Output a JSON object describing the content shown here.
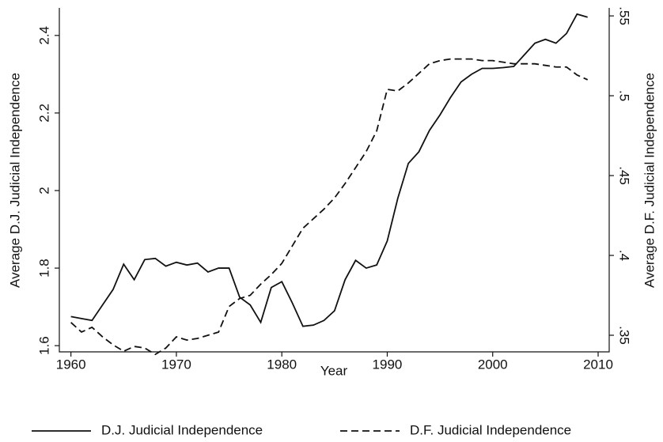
{
  "chart_data": {
    "type": "line",
    "xlabel": "Year",
    "ylabel": "Average D.J. Judicial Independence",
    "y2label": "Average D.F. Judicial Independence",
    "x": [
      1960,
      1961,
      1962,
      1963,
      1964,
      1965,
      1966,
      1967,
      1968,
      1969,
      1970,
      1971,
      1972,
      1973,
      1974,
      1975,
      1976,
      1977,
      1978,
      1979,
      1980,
      1981,
      1982,
      1983,
      1984,
      1985,
      1986,
      1987,
      1988,
      1989,
      1990,
      1991,
      1992,
      1993,
      1994,
      1995,
      1996,
      1997,
      1998,
      1999,
      2000,
      2001,
      2002,
      2003,
      2004,
      2005,
      2006,
      2007,
      2008,
      2009
    ],
    "series": [
      {
        "name": "D.J. Judicial Independence",
        "color": "#111111",
        "dash": "solid",
        "values": [
          1.675,
          1.67,
          1.665,
          1.705,
          1.745,
          1.81,
          1.77,
          1.822,
          1.825,
          1.805,
          1.815,
          1.808,
          1.813,
          1.79,
          1.8,
          1.8,
          1.725,
          1.705,
          1.66,
          1.75,
          1.765,
          1.71,
          1.65,
          1.653,
          1.665,
          1.69,
          1.77,
          1.82,
          1.8,
          1.808,
          1.87,
          1.98,
          2.07,
          2.1,
          2.155,
          2.195,
          2.24,
          2.28,
          2.3,
          2.315,
          2.315,
          2.317,
          2.32,
          2.35,
          2.38,
          2.39,
          2.38,
          2.405,
          2.455,
          2.447
        ]
      },
      {
        "name": "D.F. Judicial Independence",
        "color": "#111111",
        "dash": "dashed",
        "axis": "y2",
        "values": [
          0.358,
          0.352,
          0.355,
          0.349,
          0.344,
          0.34,
          0.343,
          0.342,
          0.338,
          0.342,
          0.349,
          0.347,
          0.348,
          0.35,
          0.352,
          0.368,
          0.373,
          0.375,
          0.382,
          0.388,
          0.395,
          0.406,
          0.417,
          0.423,
          0.429,
          0.436,
          0.445,
          0.455,
          0.465,
          0.478,
          0.504,
          0.503,
          0.508,
          0.514,
          0.52,
          0.522,
          0.523,
          0.523,
          0.523,
          0.522,
          0.522,
          0.521,
          0.52,
          0.52,
          0.52,
          0.519,
          0.518,
          0.518,
          0.513,
          0.51
        ]
      }
    ],
    "xlim": [
      1958.9,
      2011.05
    ],
    "xticks": [
      1960,
      1970,
      1980,
      1990,
      2000,
      2010
    ],
    "ylim": [
      1.584,
      2.471
    ],
    "yticks": [
      1.6,
      1.8,
      2,
      2.2,
      2.4
    ],
    "y2lim": [
      0.3396,
      0.555
    ],
    "y2ticks": [
      {
        "value": 0.35,
        "label": ".35"
      },
      {
        "value": 0.4,
        "label": ".4"
      },
      {
        "value": 0.45,
        "label": ".45"
      },
      {
        "value": 0.5,
        "label": ".5"
      },
      {
        "value": 0.55,
        "label": ".55"
      }
    ],
    "legend": "bottom"
  }
}
